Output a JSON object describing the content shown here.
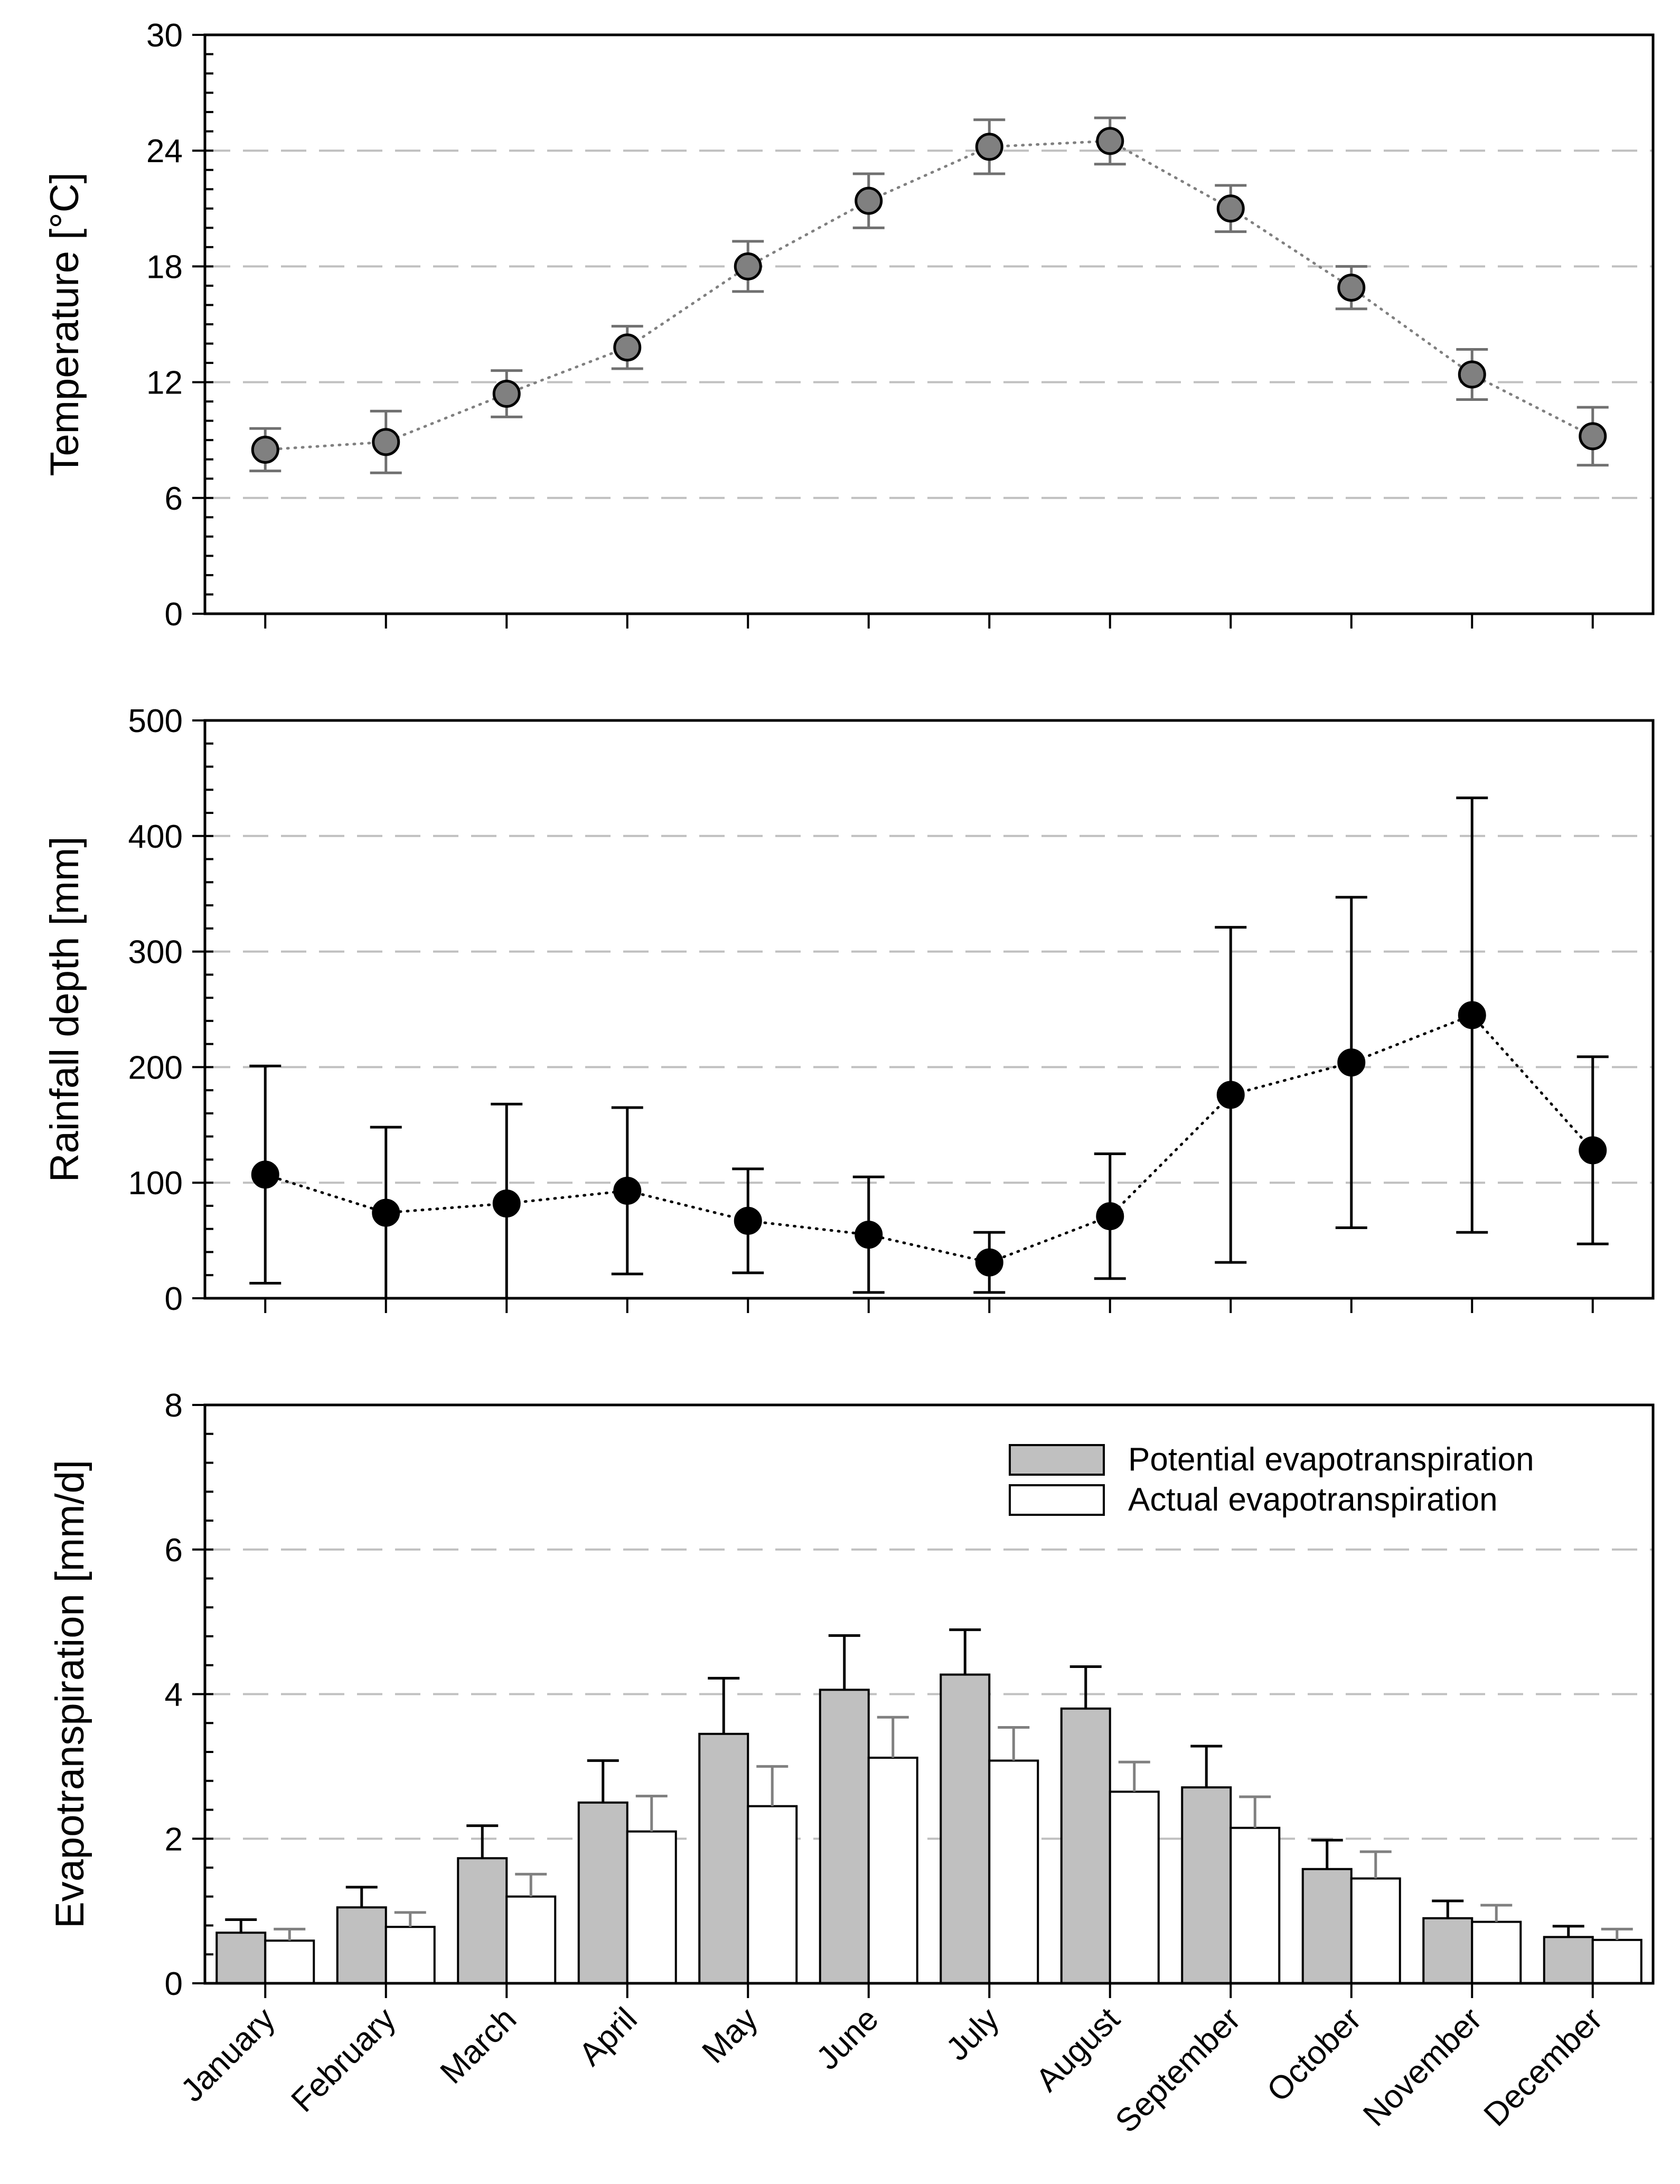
{
  "chart_data": [
    {
      "type": "scatter",
      "id": "temperature",
      "ylabel": "Temperature [°C]",
      "ylim": [
        0,
        30
      ],
      "yticks": [
        0,
        6,
        12,
        18,
        24,
        30
      ],
      "ytick_labels": [
        "0",
        "6",
        "12",
        "18",
        "24",
        "30"
      ],
      "ytick_minor_step": 1,
      "grid_lines": [
        6,
        12,
        18,
        24
      ],
      "categories": [
        "January",
        "February",
        "March",
        "April",
        "May",
        "June",
        "July",
        "August",
        "September",
        "October",
        "November",
        "December"
      ],
      "series": [
        {
          "name": "Temperature",
          "values": [
            8.5,
            8.9,
            11.4,
            13.8,
            18.0,
            21.4,
            24.2,
            24.5,
            21.0,
            16.9,
            12.4,
            9.2
          ],
          "error": [
            1.1,
            1.6,
            1.2,
            1.1,
            1.3,
            1.4,
            1.4,
            1.2,
            1.2,
            1.1,
            1.3,
            1.5
          ],
          "marker_color": "#808080",
          "line_color": "#808080",
          "error_color": "#707070"
        }
      ]
    },
    {
      "type": "scatter",
      "id": "rainfall",
      "ylabel": "Rainfall depth [mm]",
      "ylim": [
        0,
        500
      ],
      "yticks": [
        0,
        100,
        200,
        300,
        400,
        500
      ],
      "ytick_labels": [
        "0",
        "100",
        "200",
        "300",
        "400",
        "500"
      ],
      "ytick_minor_step": 20,
      "grid_lines": [
        100,
        200,
        300,
        400
      ],
      "categories": [
        "January",
        "February",
        "March",
        "April",
        "May",
        "June",
        "July",
        "August",
        "September",
        "October",
        "November",
        "December"
      ],
      "series": [
        {
          "name": "Rainfall depth",
          "values": [
            107,
            74,
            82,
            93,
            67,
            55,
            31,
            71,
            176,
            204,
            245,
            128
          ],
          "error": [
            94,
            74,
            86,
            72,
            45,
            50,
            26,
            54,
            145,
            143,
            188,
            81
          ],
          "marker_color": "#000000",
          "line_color": "#000000",
          "error_color": "#000000"
        }
      ]
    },
    {
      "type": "bar",
      "id": "evapotranspiration",
      "ylabel": "Evapotranspiration [mm/d]",
      "ylim": [
        0,
        8
      ],
      "yticks": [
        0,
        2,
        4,
        6,
        8
      ],
      "ytick_labels": [
        "0",
        "2",
        "4",
        "6",
        "8"
      ],
      "ytick_minor_step": 0.4,
      "grid_lines": [
        2,
        4,
        6
      ],
      "categories": [
        "January",
        "February",
        "March",
        "April",
        "May",
        "June",
        "July",
        "August",
        "September",
        "October",
        "November",
        "December"
      ],
      "legend_position": "top-right",
      "series": [
        {
          "name": "Potential evapotranspiration",
          "values": [
            0.7,
            1.05,
            1.73,
            2.5,
            3.45,
            4.06,
            4.27,
            3.8,
            2.71,
            1.58,
            0.9,
            0.64
          ],
          "error": [
            0.18,
            0.28,
            0.45,
            0.58,
            0.77,
            0.75,
            0.62,
            0.58,
            0.57,
            0.4,
            0.24,
            0.15
          ],
          "fill": "#c0c0c0",
          "error_color": "#000000"
        },
        {
          "name": "Actual evapotranspiration",
          "values": [
            0.59,
            0.78,
            1.2,
            2.1,
            2.45,
            3.12,
            3.08,
            2.65,
            2.15,
            1.45,
            0.85,
            0.6
          ],
          "error": [
            0.16,
            0.2,
            0.31,
            0.49,
            0.55,
            0.56,
            0.46,
            0.41,
            0.43,
            0.37,
            0.23,
            0.15
          ],
          "fill": "#ffffff",
          "error_color": "#808080"
        }
      ]
    }
  ]
}
